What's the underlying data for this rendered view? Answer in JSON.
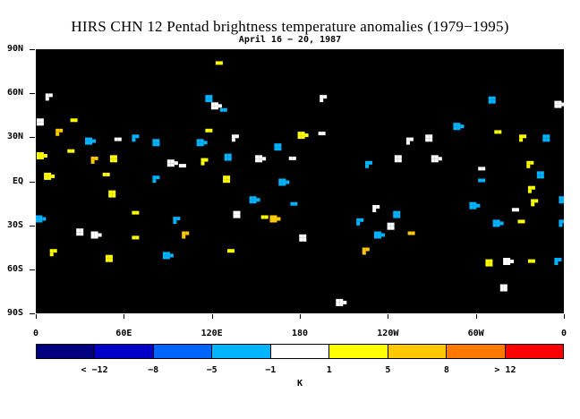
{
  "title": "HIRS CHN 12 Pentad brightness temperature anomalies (1979−1995)",
  "subtitle": "April 16 − 20, 1987",
  "lat_labels": [
    "90N",
    "60N",
    "30N",
    "EQ",
    "30S",
    "60S",
    "90S"
  ],
  "lon_labels": [
    "0",
    "60E",
    "120E",
    "180",
    "120W",
    "60W",
    "0"
  ],
  "colorbar": {
    "colors": [
      "#000080",
      "#0000c8",
      "#0064ff",
      "#00b4ff",
      "#ffffff",
      "#ffff00",
      "#ffc800",
      "#ff7800",
      "#ff0000"
    ],
    "labels": [
      "< −12",
      "−8",
      "−5",
      "−1",
      "1",
      "5",
      "8",
      "> 12"
    ],
    "unit": "K"
  },
  "colors": {
    "map_background": "#000000",
    "warm": "#ffff00",
    "warm_strong": "#ffc800",
    "cool": "#00b4ff",
    "neutral": "#ffffff"
  },
  "anomaly_patches": [
    {
      "lon": 125,
      "lat": 80,
      "level": "5"
    },
    {
      "lon": 9,
      "lat": 58,
      "level": "1"
    },
    {
      "lon": 118,
      "lat": 57,
      "level": "-1"
    },
    {
      "lon": 122,
      "lat": 52,
      "level": "1"
    },
    {
      "lon": 128,
      "lat": 48,
      "level": "-1"
    },
    {
      "lon": 196,
      "lat": 57,
      "level": "1"
    },
    {
      "lon": 311,
      "lat": 56,
      "level": "-1"
    },
    {
      "lon": 356,
      "lat": 53,
      "level": "1"
    },
    {
      "lon": 26,
      "lat": 41,
      "level": "5"
    },
    {
      "lon": 16,
      "lat": 34,
      "level": "8"
    },
    {
      "lon": 3,
      "lat": 41,
      "level": "1"
    },
    {
      "lon": 36,
      "lat": 28,
      "level": "-1"
    },
    {
      "lon": 56,
      "lat": 28,
      "level": "1"
    },
    {
      "lon": 68,
      "lat": 30,
      "level": "-1"
    },
    {
      "lon": 82,
      "lat": 27,
      "level": "-1"
    },
    {
      "lon": 112,
      "lat": 27,
      "level": "-1"
    },
    {
      "lon": 118,
      "lat": 34,
      "level": "5"
    },
    {
      "lon": 136,
      "lat": 30,
      "level": "1"
    },
    {
      "lon": 165,
      "lat": 24,
      "level": "-1"
    },
    {
      "lon": 181,
      "lat": 32,
      "level": "5"
    },
    {
      "lon": 195,
      "lat": 32,
      "level": "1"
    },
    {
      "lon": 255,
      "lat": 28,
      "level": "1"
    },
    {
      "lon": 268,
      "lat": 30,
      "level": "1"
    },
    {
      "lon": 287,
      "lat": 38,
      "level": "-1"
    },
    {
      "lon": 315,
      "lat": 33,
      "level": "5"
    },
    {
      "lon": 332,
      "lat": 30,
      "level": "5"
    },
    {
      "lon": 348,
      "lat": 30,
      "level": "-1"
    },
    {
      "lon": 3,
      "lat": 18,
      "level": "5"
    },
    {
      "lon": 24,
      "lat": 20,
      "level": "5"
    },
    {
      "lon": 40,
      "lat": 15,
      "level": "8"
    },
    {
      "lon": 53,
      "lat": 16,
      "level": "5"
    },
    {
      "lon": 92,
      "lat": 13,
      "level": "1"
    },
    {
      "lon": 100,
      "lat": 10,
      "level": "1"
    },
    {
      "lon": 115,
      "lat": 14,
      "level": "5"
    },
    {
      "lon": 131,
      "lat": 17,
      "level": "-1"
    },
    {
      "lon": 152,
      "lat": 16,
      "level": "1"
    },
    {
      "lon": 175,
      "lat": 15,
      "level": "1"
    },
    {
      "lon": 227,
      "lat": 12,
      "level": "-1"
    },
    {
      "lon": 247,
      "lat": 16,
      "level": "1"
    },
    {
      "lon": 272,
      "lat": 16,
      "level": "1"
    },
    {
      "lon": 304,
      "lat": 8,
      "level": "1"
    },
    {
      "lon": 337,
      "lat": 12,
      "level": "5"
    },
    {
      "lon": 344,
      "lat": 5,
      "level": "-1"
    },
    {
      "lon": 8,
      "lat": 4,
      "level": "5"
    },
    {
      "lon": 48,
      "lat": 4,
      "level": "5"
    },
    {
      "lon": 82,
      "lat": 2,
      "level": "-1"
    },
    {
      "lon": 130,
      "lat": 2,
      "level": "5"
    },
    {
      "lon": 168,
      "lat": 0,
      "level": "-1"
    },
    {
      "lon": 304,
      "lat": 0,
      "level": "-1"
    },
    {
      "lon": 338,
      "lat": -5,
      "level": "5"
    },
    {
      "lon": 52,
      "lat": -8,
      "level": "5"
    },
    {
      "lon": 148,
      "lat": -12,
      "level": "-1"
    },
    {
      "lon": 176,
      "lat": -16,
      "level": "-1"
    },
    {
      "lon": 232,
      "lat": -18,
      "level": "1"
    },
    {
      "lon": 246,
      "lat": -22,
      "level": "-1"
    },
    {
      "lon": 298,
      "lat": -16,
      "level": "-1"
    },
    {
      "lon": 327,
      "lat": -20,
      "level": "1"
    },
    {
      "lon": 340,
      "lat": -14,
      "level": "5"
    },
    {
      "lon": 359,
      "lat": -12,
      "level": "-1"
    },
    {
      "lon": 2,
      "lat": -25,
      "level": "-1"
    },
    {
      "lon": 68,
      "lat": -22,
      "level": "5"
    },
    {
      "lon": 96,
      "lat": -26,
      "level": "-1"
    },
    {
      "lon": 137,
      "lat": -22,
      "level": "1"
    },
    {
      "lon": 162,
      "lat": -25,
      "level": "8"
    },
    {
      "lon": 156,
      "lat": -25,
      "level": "5"
    },
    {
      "lon": 221,
      "lat": -27,
      "level": "-1"
    },
    {
      "lon": 242,
      "lat": -30,
      "level": "1"
    },
    {
      "lon": 314,
      "lat": -28,
      "level": "-1"
    },
    {
      "lon": 331,
      "lat": -28,
      "level": "5"
    },
    {
      "lon": 359,
      "lat": -28,
      "level": "-1"
    },
    {
      "lon": 30,
      "lat": -34,
      "level": "1"
    },
    {
      "lon": 40,
      "lat": -36,
      "level": "1"
    },
    {
      "lon": 68,
      "lat": -39,
      "level": "5"
    },
    {
      "lon": 102,
      "lat": -36,
      "level": "8"
    },
    {
      "lon": 182,
      "lat": -38,
      "level": "1"
    },
    {
      "lon": 233,
      "lat": -36,
      "level": "-1"
    },
    {
      "lon": 256,
      "lat": -36,
      "level": "8"
    },
    {
      "lon": 12,
      "lat": -48,
      "level": "5"
    },
    {
      "lon": 50,
      "lat": -52,
      "level": "5"
    },
    {
      "lon": 89,
      "lat": -50,
      "level": "-1"
    },
    {
      "lon": 133,
      "lat": -48,
      "level": "5"
    },
    {
      "lon": 225,
      "lat": -47,
      "level": "8"
    },
    {
      "lon": 309,
      "lat": -55,
      "level": "5"
    },
    {
      "lon": 321,
      "lat": -54,
      "level": "1"
    },
    {
      "lon": 338,
      "lat": -55,
      "level": "5"
    },
    {
      "lon": 356,
      "lat": -54,
      "level": "-1"
    },
    {
      "lon": 319,
      "lat": -72,
      "level": "1"
    },
    {
      "lon": 207,
      "lat": -82,
      "level": "1"
    }
  ]
}
